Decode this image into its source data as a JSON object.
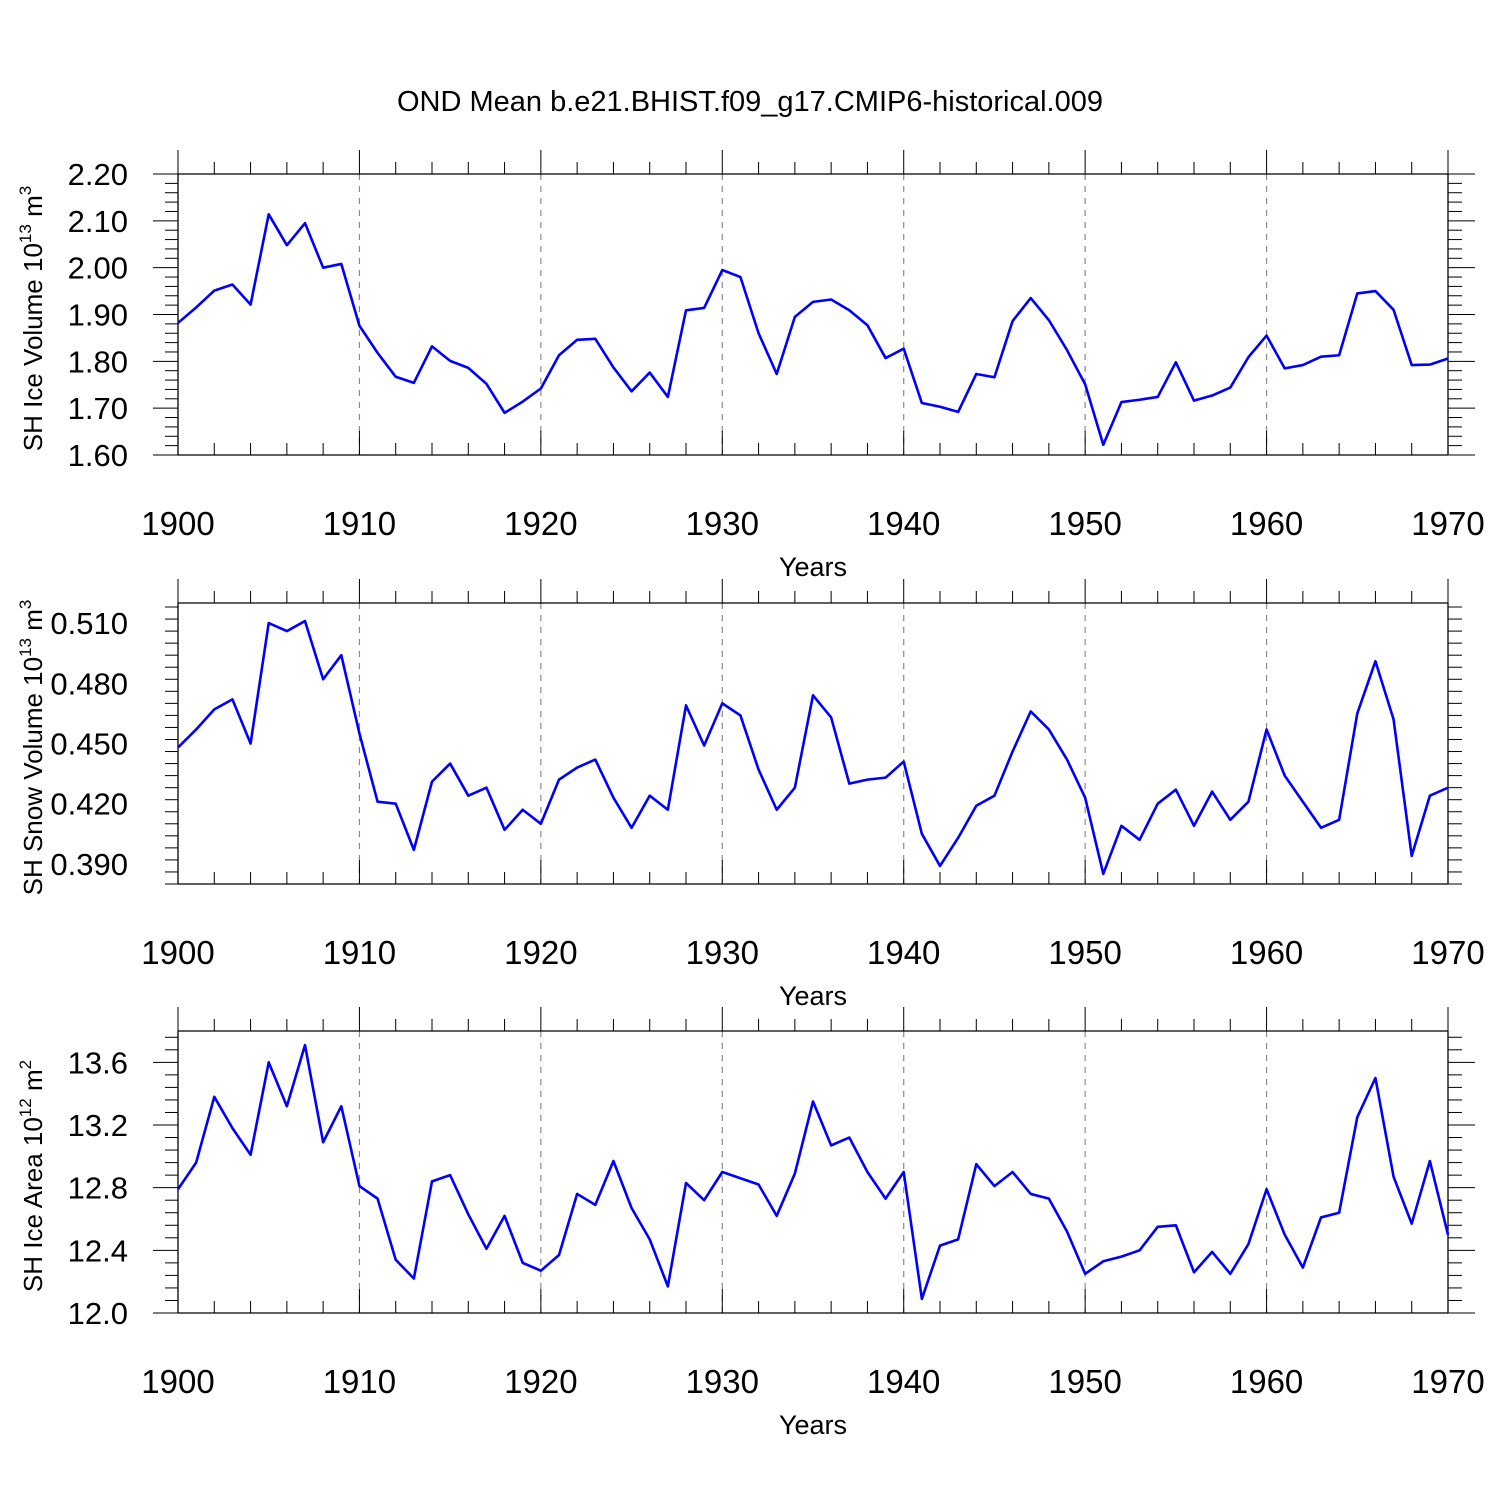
{
  "title": "OND Mean b.e21.BHIST.f09_g17.CMIP6-historical.009",
  "line_color": "#0000ff",
  "chart_data": [
    {
      "type": "line",
      "ylabel": {
        "prefix": "SH Ice Volume 10",
        "exp": "13",
        "unit": " m",
        "unit_exp": "3"
      },
      "xlabel": "Years",
      "xlim": [
        1900,
        1970
      ],
      "ylim": [
        1.6,
        2.2
      ],
      "yticks": [
        1.6,
        1.7,
        1.8,
        1.9,
        2.0,
        2.1,
        2.2
      ],
      "ytick_labels": [
        "1.60",
        "1.70",
        "1.80",
        "1.90",
        "2.00",
        "2.10",
        "2.20"
      ],
      "xticks": [
        1900,
        1910,
        1920,
        1930,
        1940,
        1950,
        1960,
        1970
      ],
      "xtick_labels": [
        "1900",
        "1910",
        "1920",
        "1930",
        "1940",
        "1950",
        "1960",
        "1970"
      ],
      "x_start": 1900,
      "values": [
        1.882,
        1.915,
        1.951,
        1.964,
        1.921,
        2.114,
        2.048,
        2.095,
        2.0,
        2.008,
        1.876,
        1.818,
        1.767,
        1.754,
        1.832,
        1.801,
        1.786,
        1.752,
        1.69,
        1.714,
        1.742,
        1.813,
        1.846,
        1.848,
        1.787,
        1.736,
        1.776,
        1.724,
        1.909,
        1.914,
        1.995,
        1.98,
        1.86,
        1.773,
        1.895,
        1.927,
        1.932,
        1.909,
        1.877,
        1.807,
        1.827,
        1.711,
        1.703,
        1.692,
        1.773,
        1.766,
        1.886,
        1.935,
        1.888,
        1.824,
        1.751,
        1.622,
        1.713,
        1.718,
        1.724,
        1.798,
        1.716,
        1.727,
        1.744,
        1.809,
        1.855,
        1.785,
        1.792,
        1.81,
        1.813,
        1.945,
        1.95,
        1.91,
        1.792,
        1.793,
        1.806
      ]
    },
    {
      "type": "line",
      "ylabel": {
        "prefix": "SH Snow Volume 10",
        "exp": "13",
        "unit": " m",
        "unit_exp": "3"
      },
      "xlabel": "Years",
      "xlim": [
        1900,
        1970
      ],
      "ylim": [
        0.38,
        0.52
      ],
      "yticks": [
        0.39,
        0.42,
        0.45,
        0.48,
        0.51
      ],
      "ytick_labels": [
        "0.390",
        "0.420",
        "0.450",
        "0.480",
        "0.510"
      ],
      "xticks": [
        1900,
        1910,
        1920,
        1930,
        1940,
        1950,
        1960,
        1970
      ],
      "xtick_labels": [
        "1900",
        "1910",
        "1920",
        "1930",
        "1940",
        "1950",
        "1960",
        "1970"
      ],
      "x_start": 1900,
      "values": [
        0.448,
        0.457,
        0.467,
        0.472,
        0.45,
        0.51,
        0.506,
        0.511,
        0.482,
        0.494,
        0.455,
        0.421,
        0.42,
        0.397,
        0.431,
        0.44,
        0.424,
        0.428,
        0.407,
        0.417,
        0.41,
        0.432,
        0.438,
        0.442,
        0.423,
        0.408,
        0.424,
        0.417,
        0.469,
        0.449,
        0.47,
        0.464,
        0.437,
        0.417,
        0.428,
        0.474,
        0.463,
        0.43,
        0.432,
        0.433,
        0.441,
        0.405,
        0.389,
        0.403,
        0.419,
        0.424,
        0.446,
        0.466,
        0.457,
        0.442,
        0.423,
        0.385,
        0.409,
        0.402,
        0.42,
        0.427,
        0.409,
        0.426,
        0.412,
        0.421,
        0.457,
        0.434,
        0.421,
        0.408,
        0.412,
        0.465,
        0.491,
        0.462,
        0.394,
        0.424,
        0.428
      ]
    },
    {
      "type": "line",
      "ylabel": {
        "prefix": "SH Ice Area 10",
        "exp": "12",
        "unit": " m",
        "unit_exp": "2"
      },
      "xlabel": "Years",
      "xlim": [
        1900,
        1970
      ],
      "ylim": [
        12.0,
        13.8
      ],
      "yticks": [
        12.0,
        12.4,
        12.8,
        13.2,
        13.6
      ],
      "ytick_labels": [
        "12.0",
        "12.4",
        "12.8",
        "13.2",
        "13.6"
      ],
      "xticks": [
        1900,
        1910,
        1920,
        1930,
        1940,
        1950,
        1960,
        1970
      ],
      "xtick_labels": [
        "1900",
        "1910",
        "1920",
        "1930",
        "1940",
        "1950",
        "1960",
        "1970"
      ],
      "x_start": 1900,
      "values": [
        12.79,
        12.96,
        13.38,
        13.18,
        13.01,
        13.6,
        13.32,
        13.71,
        13.09,
        13.32,
        12.81,
        12.73,
        12.34,
        12.22,
        12.84,
        12.88,
        12.63,
        12.41,
        12.62,
        12.32,
        12.27,
        12.37,
        12.76,
        12.69,
        12.97,
        12.67,
        12.47,
        12.17,
        12.83,
        12.72,
        12.9,
        12.86,
        12.82,
        12.62,
        12.89,
        13.35,
        13.07,
        13.12,
        12.9,
        12.73,
        12.9,
        12.09,
        12.43,
        12.47,
        12.95,
        12.81,
        12.9,
        12.76,
        12.73,
        12.52,
        12.25,
        12.33,
        12.36,
        12.4,
        12.55,
        12.56,
        12.26,
        12.39,
        12.25,
        12.44,
        12.79,
        12.5,
        12.29,
        12.61,
        12.64,
        13.25,
        13.5,
        12.87,
        12.57,
        12.97,
        12.5
      ]
    }
  ]
}
